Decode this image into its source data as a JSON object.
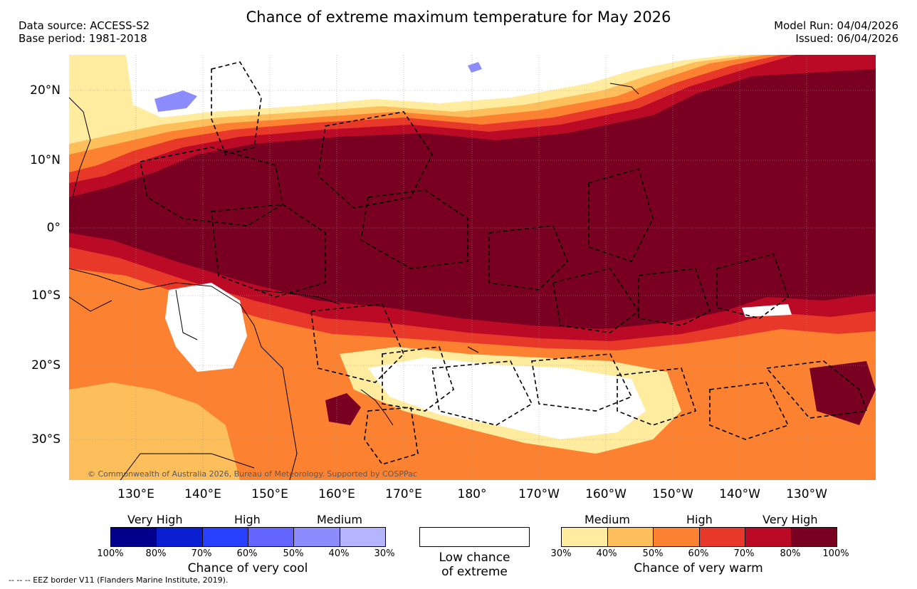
{
  "header": {
    "title": "Chance of extreme maximum temperature for May 2026",
    "data_source": "Data source: ACCESS-S2",
    "base_period": "Base period: 1981-2018",
    "model_run": "Model Run: 04/04/2026",
    "issued": "Issued: 06/04/2026"
  },
  "map": {
    "lat_labels": [
      "20°N",
      "10°N",
      "0°",
      "10°S",
      "20°S",
      "30°S"
    ],
    "lon_labels": [
      "130°E",
      "140°E",
      "150°E",
      "160°E",
      "170°E",
      "180°",
      "170°W",
      "160°W",
      "150°W",
      "140°W",
      "130°W"
    ],
    "copyright": "© Commonwealth of Australia 2026, Bureau of Meteorology. Supported by COSPPac"
  },
  "legend": {
    "cool": {
      "headers": [
        "Very High",
        "High",
        "Medium"
      ],
      "ticks": [
        "100%",
        "80%",
        "70%",
        "60%",
        "50%",
        "40%",
        "30%"
      ],
      "title": "Chance of very cool",
      "colors": [
        "#00008c",
        "#0a1fd2",
        "#2840ff",
        "#6464ff",
        "#8c8cff",
        "#b4b4ff"
      ]
    },
    "low": {
      "line1": "Low chance",
      "line2": "of extreme"
    },
    "warm": {
      "headers": [
        "Medium",
        "High",
        "Very High"
      ],
      "ticks": [
        "30%",
        "40%",
        "50%",
        "60%",
        "70%",
        "80%",
        "100%"
      ],
      "title": "Chance of very warm",
      "colors": [
        "#ffec9e",
        "#fdbe5c",
        "#fc8232",
        "#e8382a",
        "#bb0a25",
        "#7a0021"
      ]
    }
  },
  "footnote": "--  --  -- EEZ border V11 (Flanders Marine Institute, 2019)."
}
